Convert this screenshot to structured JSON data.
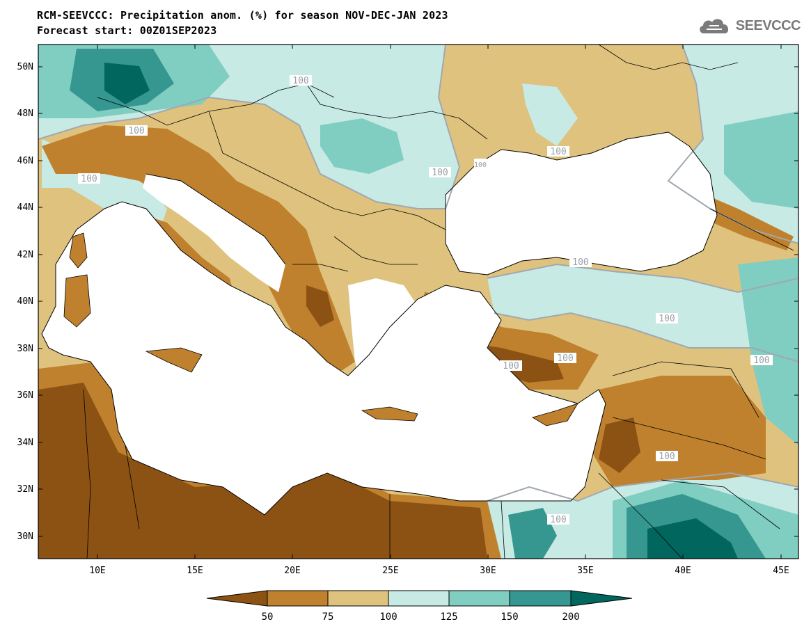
{
  "header": {
    "title": "RCM-SEEVCCC: Precipitation anom. (%) for season NOV-DEC-JAN 2023",
    "subtitle": "Forecast start: 00Z01SEP2023",
    "logo_text": "SEEVCCC",
    "logo_icon": "cloud-icon"
  },
  "axes": {
    "lat_labels": [
      "50N",
      "48N",
      "46N",
      "44N",
      "42N",
      "40N",
      "38N",
      "36N",
      "34N",
      "32N",
      "30N"
    ],
    "lon_labels": [
      "10E",
      "15E",
      "20E",
      "25E",
      "30E",
      "35E",
      "40E",
      "45E"
    ]
  },
  "contour_labels": [
    "100",
    "100",
    "100",
    "100",
    "100",
    "100",
    "100",
    "100",
    "100",
    "100",
    "100",
    "100",
    "100"
  ],
  "colorbar": {
    "ticks": [
      "50",
      "75",
      "100",
      "125",
      "150",
      "200"
    ],
    "bins": [
      {
        "range": "<50",
        "color": "#8c5213"
      },
      {
        "range": "50-75",
        "color": "#bf812d"
      },
      {
        "range": "75-100",
        "color": "#dfc27d"
      },
      {
        "range": "100-125",
        "color": "#c7eae5"
      },
      {
        "range": "125-150",
        "color": "#80cdc1"
      },
      {
        "range": "150-200",
        "color": "#35978f"
      },
      {
        "range": ">200",
        "color": "#01665e"
      }
    ]
  },
  "colors": {
    "sea": "#ffffff",
    "contour100": "#a0a8b0",
    "border": "#000000"
  }
}
